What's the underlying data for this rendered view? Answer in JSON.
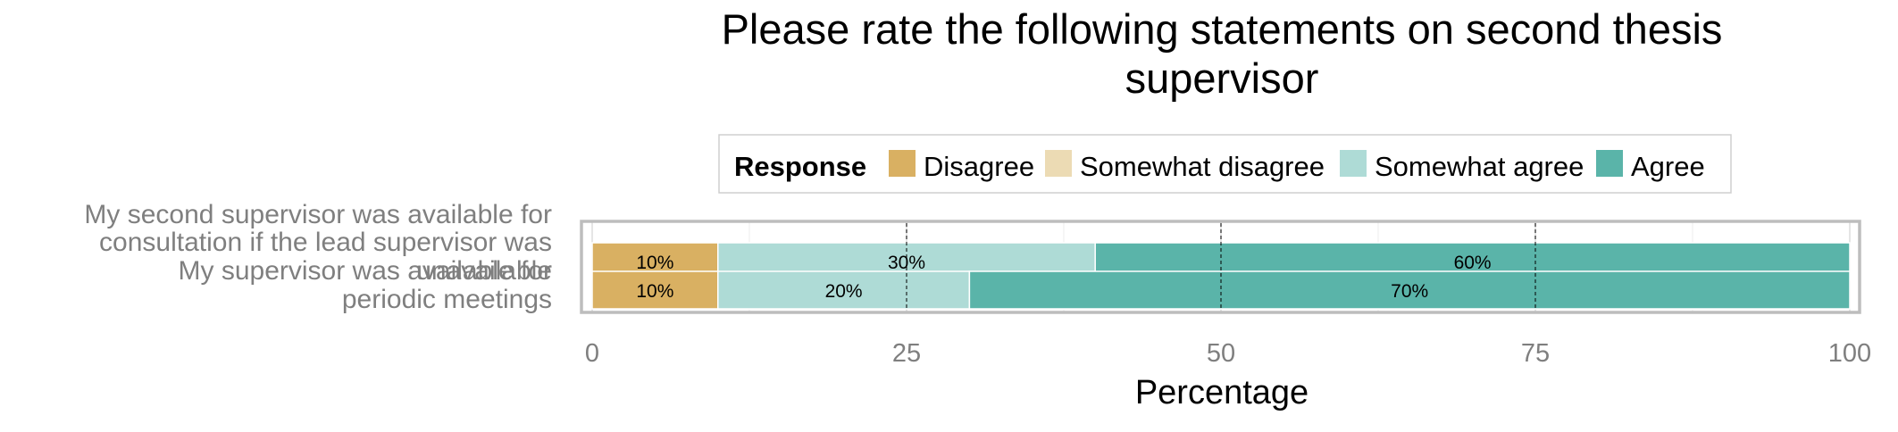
{
  "chart_data": {
    "type": "bar",
    "orientation": "horizontal",
    "stacked": true,
    "title_lines": [
      "Please rate the following statements on second thesis",
      "supervisor"
    ],
    "xlabel": "Percentage",
    "ylabel": "",
    "xlim": [
      0,
      100
    ],
    "xticks": [
      0,
      25,
      50,
      75,
      100
    ],
    "grid": true,
    "legend": {
      "title": "Response",
      "placement": "top",
      "entries": [
        "Disagree",
        "Somewhat disagree",
        "Somewhat agree",
        "Agree"
      ]
    },
    "colors": {
      "Disagree": "#d9b062",
      "Somewhat disagree": "#ecdbb4",
      "Somewhat agree": "#aedbd6",
      "Agree": "#5ab4a9"
    },
    "categories": [
      {
        "label_lines": [
          "My second supervisor was available for",
          "consultation if the lead supervisor was",
          "unavailable"
        ],
        "values": {
          "Disagree": 10,
          "Somewhat disagree": 0,
          "Somewhat agree": 30,
          "Agree": 60
        },
        "data_labels": {
          "Disagree": "10%",
          "Somewhat agree": "30%",
          "Agree": "60%"
        }
      },
      {
        "label_lines": [
          "My supervisor was available for",
          "periodic meetings"
        ],
        "values": {
          "Disagree": 10,
          "Somewhat disagree": 0,
          "Somewhat agree": 20,
          "Agree": 70
        },
        "data_labels": {
          "Disagree": "10%",
          "Somewhat agree": "20%",
          "Agree": "70%"
        }
      }
    ]
  }
}
